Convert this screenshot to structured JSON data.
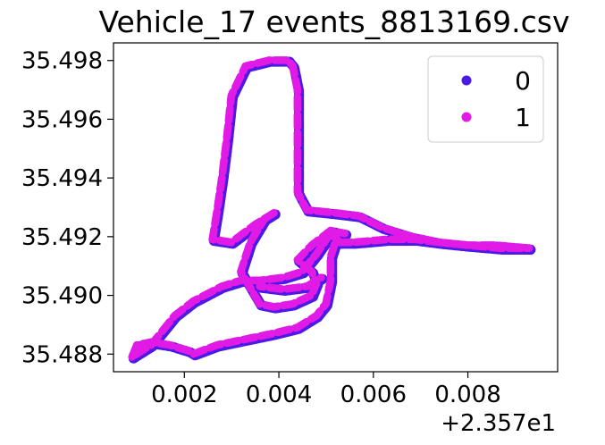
{
  "chart_data": {
    "type": "scatter",
    "title": "Vehicle_17 events_8813169.csv",
    "xlabel": "",
    "ylabel": "",
    "x_offset_label": "+2.357e1",
    "xlim": [
      0.0005,
      0.0099
    ],
    "ylim": [
      35.4874,
      35.4986
    ],
    "x_ticks": [
      0.002,
      0.004,
      0.006,
      0.008
    ],
    "x_tick_labels": [
      "0.002",
      "0.004",
      "0.006",
      "0.008"
    ],
    "y_ticks": [
      35.488,
      35.49,
      35.492,
      35.494,
      35.496,
      35.498
    ],
    "y_tick_labels": [
      "35.488",
      "35.490",
      "35.492",
      "35.494",
      "35.496",
      "35.498"
    ],
    "grid": false,
    "legend_position": "top-right",
    "series": [
      {
        "name": "0",
        "color": "#4c1ae6",
        "segments": [
          [
            [
              0.0009,
              35.4879
            ],
            [
              0.001,
              35.4883
            ],
            [
              0.0013,
              35.4884
            ],
            [
              0.0017,
              35.4883
            ],
            [
              0.0021,
              35.4881
            ],
            [
              0.0022,
              35.488
            ],
            [
              0.0027,
              35.4883
            ],
            [
              0.0033,
              35.4885
            ],
            [
              0.0039,
              35.4887
            ],
            [
              0.0044,
              35.4889
            ],
            [
              0.0048,
              35.4893
            ],
            [
              0.005,
              35.4897
            ],
            [
              0.0051,
              35.4905
            ],
            [
              0.0051,
              35.4913
            ],
            [
              0.0052,
              35.4918
            ],
            [
              0.0056,
              35.4918
            ],
            [
              0.0063,
              35.4919
            ],
            [
              0.0069,
              35.4919
            ],
            [
              0.0074,
              35.4918
            ],
            [
              0.008,
              35.4917
            ],
            [
              0.0086,
              35.4917
            ],
            [
              0.0093,
              35.4916
            ]
          ],
          [
            [
              0.0009,
              35.4879
            ],
            [
              0.0013,
              35.4883
            ],
            [
              0.0018,
              35.4893
            ],
            [
              0.0022,
              35.4898
            ],
            [
              0.0028,
              35.4903
            ],
            [
              0.0032,
              35.4905
            ],
            [
              0.0036,
              35.4905
            ],
            [
              0.0041,
              35.4906
            ],
            [
              0.0045,
              35.4908
            ],
            [
              0.0048,
              35.4914
            ],
            [
              0.0051,
              35.4921
            ],
            [
              0.0053,
              35.4918
            ]
          ],
          [
            [
              0.0093,
              35.4916
            ],
            [
              0.0087,
              35.4916
            ],
            [
              0.008,
              35.4917
            ],
            [
              0.0074,
              35.4918
            ],
            [
              0.0068,
              35.492
            ],
            [
              0.0062,
              35.4923
            ],
            [
              0.0057,
              35.4927
            ],
            [
              0.0052,
              35.4928
            ],
            [
              0.0046,
              35.4929
            ],
            [
              0.0044,
              35.4935
            ],
            [
              0.0044,
              35.4945
            ],
            [
              0.0044,
              35.4958
            ],
            [
              0.0044,
              35.497
            ],
            [
              0.0043,
              35.4978
            ],
            [
              0.0042,
              35.498
            ],
            [
              0.0038,
              35.498
            ],
            [
              0.0033,
              35.4978
            ],
            [
              0.003,
              35.4968
            ],
            [
              0.0029,
              35.4953
            ],
            [
              0.0028,
              35.494
            ],
            [
              0.0027,
              35.4929
            ],
            [
              0.0026,
              35.4919
            ],
            [
              0.003,
              35.4918
            ],
            [
              0.0035,
              35.4924
            ],
            [
              0.0039,
              35.4928
            ],
            [
              0.0037,
              35.4926
            ],
            [
              0.0034,
              35.4918
            ],
            [
              0.0032,
              35.4908
            ],
            [
              0.0036,
              35.4897
            ],
            [
              0.0039,
              35.4896
            ],
            [
              0.0043,
              35.4897
            ],
            [
              0.0047,
              35.49
            ],
            [
              0.0048,
              35.4904
            ],
            [
              0.0047,
              35.4908
            ],
            [
              0.0044,
              35.4912
            ],
            [
              0.0047,
              35.4917
            ],
            [
              0.0051,
              35.4922
            ],
            [
              0.0054,
              35.4921
            ]
          ],
          [
            [
              0.0036,
              35.4903
            ],
            [
              0.0041,
              35.4902
            ],
            [
              0.0046,
              35.4903
            ],
            [
              0.0049,
              35.4906
            ]
          ]
        ]
      },
      {
        "name": "1",
        "color": "#e21ae6",
        "segments": [
          [
            [
              0.0009,
              35.4879
            ],
            [
              0.001,
              35.4883
            ],
            [
              0.0013,
              35.4884
            ],
            [
              0.0017,
              35.4883
            ],
            [
              0.0021,
              35.4881
            ],
            [
              0.0022,
              35.488
            ],
            [
              0.0027,
              35.4883
            ],
            [
              0.0033,
              35.4885
            ],
            [
              0.0039,
              35.4887
            ],
            [
              0.0044,
              35.4889
            ],
            [
              0.0048,
              35.4893
            ],
            [
              0.005,
              35.4897
            ],
            [
              0.0051,
              35.4905
            ],
            [
              0.0051,
              35.4913
            ],
            [
              0.0052,
              35.4918
            ],
            [
              0.0056,
              35.4918
            ],
            [
              0.0063,
              35.4919
            ],
            [
              0.0069,
              35.4919
            ],
            [
              0.0074,
              35.4918
            ],
            [
              0.008,
              35.4917
            ],
            [
              0.0086,
              35.4917
            ],
            [
              0.0093,
              35.4916
            ]
          ],
          [
            [
              0.0009,
              35.4879
            ],
            [
              0.0013,
              35.4883
            ],
            [
              0.0018,
              35.4893
            ],
            [
              0.0022,
              35.4898
            ],
            [
              0.0028,
              35.4903
            ],
            [
              0.0032,
              35.4905
            ],
            [
              0.0036,
              35.4905
            ],
            [
              0.0041,
              35.4906
            ],
            [
              0.0045,
              35.4908
            ],
            [
              0.0048,
              35.4914
            ],
            [
              0.0051,
              35.4921
            ],
            [
              0.0053,
              35.4918
            ]
          ],
          [
            [
              0.0093,
              35.4916
            ],
            [
              0.0087,
              35.4916
            ],
            [
              0.008,
              35.4917
            ],
            [
              0.0074,
              35.4918
            ],
            [
              0.0068,
              35.492
            ],
            [
              0.0062,
              35.4923
            ],
            [
              0.0057,
              35.4927
            ],
            [
              0.0052,
              35.4928
            ],
            [
              0.0046,
              35.4929
            ],
            [
              0.0044,
              35.4935
            ],
            [
              0.0044,
              35.4945
            ],
            [
              0.0044,
              35.4958
            ],
            [
              0.0044,
              35.497
            ],
            [
              0.0043,
              35.4978
            ],
            [
              0.0042,
              35.498
            ],
            [
              0.0038,
              35.498
            ],
            [
              0.0033,
              35.4978
            ],
            [
              0.003,
              35.4968
            ],
            [
              0.0029,
              35.4953
            ],
            [
              0.0028,
              35.494
            ],
            [
              0.0027,
              35.4929
            ],
            [
              0.0026,
              35.4919
            ],
            [
              0.003,
              35.4918
            ],
            [
              0.0035,
              35.4924
            ],
            [
              0.0039,
              35.4928
            ],
            [
              0.0037,
              35.4926
            ],
            [
              0.0034,
              35.4918
            ],
            [
              0.0032,
              35.4908
            ],
            [
              0.0036,
              35.4897
            ],
            [
              0.0039,
              35.4896
            ],
            [
              0.0043,
              35.4897
            ],
            [
              0.0047,
              35.49
            ],
            [
              0.0048,
              35.4904
            ],
            [
              0.0047,
              35.4908
            ],
            [
              0.0044,
              35.4912
            ],
            [
              0.0047,
              35.4917
            ],
            [
              0.0051,
              35.4922
            ],
            [
              0.0054,
              35.4921
            ]
          ],
          [
            [
              0.0036,
              35.4903
            ],
            [
              0.0041,
              35.4902
            ],
            [
              0.0046,
              35.4903
            ],
            [
              0.0049,
              35.4906
            ]
          ]
        ]
      }
    ]
  }
}
